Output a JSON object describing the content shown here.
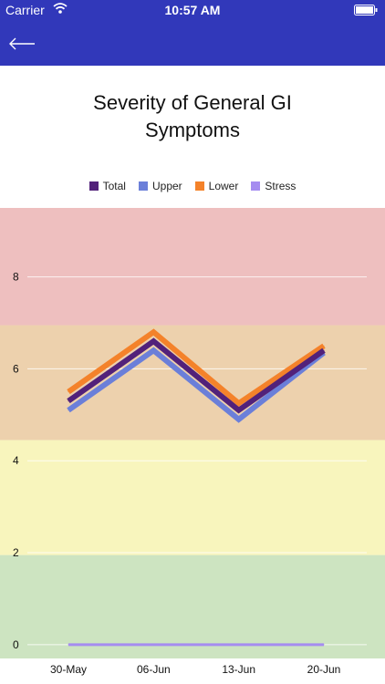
{
  "status_bar": {
    "carrier": "Carrier",
    "time": "10:57 AM"
  },
  "nav": {
    "back_icon": "arrow-left-icon"
  },
  "chart_data": {
    "type": "line",
    "title": "Severity of General GI Symptoms",
    "categories": [
      "30-May",
      "06-Jun",
      "13-Jun",
      "20-Jun"
    ],
    "y_ticks": [
      0,
      2,
      4,
      6,
      8
    ],
    "ylim": [
      -0.3,
      9.5
    ],
    "bands": [
      {
        "from": -0.3,
        "to": 1.95,
        "color": "#cde4c1"
      },
      {
        "from": 1.95,
        "to": 4.45,
        "color": "#f8f5bd"
      },
      {
        "from": 4.45,
        "to": 6.95,
        "color": "#edd1ad"
      },
      {
        "from": 6.95,
        "to": 9.5,
        "color": "#eebfbf"
      }
    ],
    "series": [
      {
        "name": "Total",
        "color": "#52217a",
        "values": [
          5.3,
          6.6,
          5.1,
          6.4
        ]
      },
      {
        "name": "Upper",
        "color": "#6b7fd9",
        "values": [
          5.1,
          6.4,
          4.9,
          6.35
        ]
      },
      {
        "name": "Lower",
        "color": "#f4822a",
        "values": [
          5.5,
          6.8,
          5.25,
          6.5
        ]
      },
      {
        "name": "Stress",
        "color": "#a58cf0",
        "values": [
          0,
          0,
          0,
          0
        ]
      }
    ],
    "grid": true,
    "legend_position": "top-center"
  }
}
